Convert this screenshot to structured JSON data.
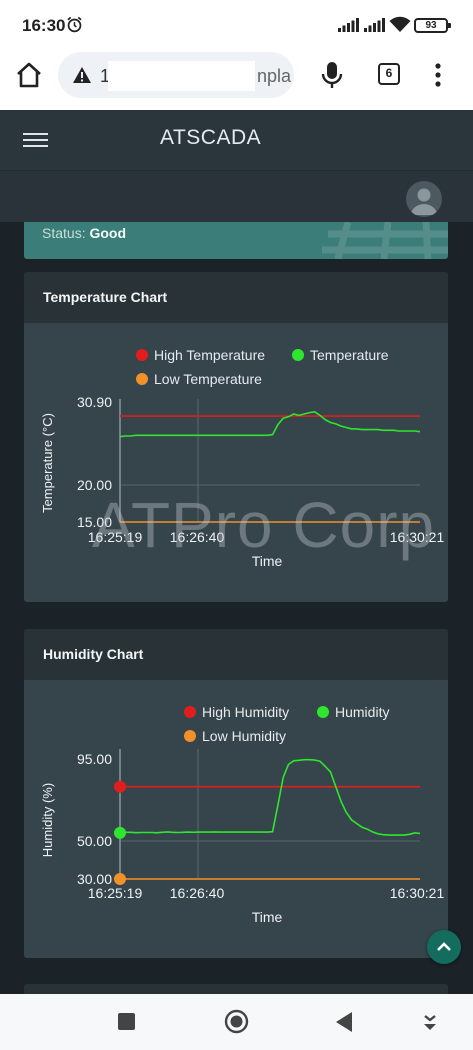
{
  "status_bar": {
    "time": "16:30",
    "battery": "93"
  },
  "browser": {
    "url_start": "1",
    "url_end": "npla",
    "tab_count": "6"
  },
  "app": {
    "title": "ATSCADA"
  },
  "status_card": {
    "label": "Status:",
    "value": "Good"
  },
  "watermark": "ATPro Corp",
  "charts": [
    {
      "header": "Temperature Chart",
      "chart_data": {
        "type": "line",
        "xlabel": "Time",
        "ylabel": "Temperature (°C)",
        "ylim": [
          15.0,
          30.9
        ],
        "y_ticks": [
          "30.90",
          "20.00",
          "15.00"
        ],
        "x_ticks": [
          "16:25:19",
          "16:26:40",
          "16:30:21"
        ],
        "legend_placement": "top",
        "colors": {
          "high": "#e11d1d",
          "value": "#2ee62e",
          "low": "#f2912a"
        },
        "series": [
          {
            "name": "High Temperature",
            "key": "high",
            "values": [
              29.9,
              29.9
            ]
          },
          {
            "name": "Temperature",
            "key": "value",
            "values": [
              27.0,
              27.1,
              27.1,
              27.2,
              27.2,
              27.2,
              27.2,
              27.2,
              27.2,
              27.2,
              27.2,
              27.2,
              27.2,
              27.2,
              27.2,
              27.2,
              27.2,
              27.2,
              27.2,
              27.2,
              27.2,
              27.2,
              27.2,
              27.2,
              27.2,
              27.2,
              27.2,
              27.2,
              27.2,
              27.3,
              28.7,
              29.6,
              29.8,
              30.2,
              30.0,
              30.2,
              30.4,
              30.5,
              30.0,
              29.4,
              29.0,
              28.8,
              28.5,
              28.3,
              28.1,
              28.1,
              28.0,
              28.0,
              28.0,
              28.0,
              27.9,
              27.9,
              27.9,
              27.8,
              27.8,
              27.8,
              27.8,
              27.7
            ]
          },
          {
            "name": "Low Temperature",
            "key": "low",
            "values": [
              15.0,
              15.0
            ]
          }
        ]
      }
    },
    {
      "header": "Humidity Chart",
      "chart_data": {
        "type": "line",
        "xlabel": "Time",
        "ylabel": "Humidity (%)",
        "ylim": [
          30.0,
          95.0
        ],
        "y_ticks": [
          "95.00",
          "50.00",
          "30.00"
        ],
        "x_ticks": [
          "16:25:19",
          "16:26:40",
          "16:30:21"
        ],
        "legend_placement": "top",
        "colors": {
          "high": "#e11d1d",
          "value": "#2ee62e",
          "low": "#f2912a"
        },
        "series": [
          {
            "name": "High Humidity",
            "key": "high",
            "values": [
              80.0,
              80.0
            ]
          },
          {
            "name": "Humidity",
            "key": "value",
            "values": [
              55.0,
              55.3,
              55.3,
              55.1,
              55.2,
              55.2,
              55.2,
              55.0,
              55.3,
              55.5,
              55.3,
              55.2,
              55.3,
              55.4,
              55.3,
              55.4,
              55.4,
              55.4,
              55.5,
              55.4,
              55.4,
              55.4,
              55.4,
              55.4,
              55.4,
              55.4,
              55.4,
              55.4,
              55.4,
              55.6,
              70.0,
              85.0,
              92.0,
              94.0,
              94.3,
              94.6,
              94.6,
              94.4,
              93.8,
              91.0,
              88.0,
              80.0,
              72.0,
              66.0,
              62.0,
              60.0,
              58.0,
              57.0,
              55.5,
              54.5,
              54.0,
              53.8,
              53.8,
              53.8,
              53.8,
              54.2,
              55.0,
              54.7
            ]
          },
          {
            "name": "Low Humidity",
            "key": "low",
            "values": [
              30.0,
              30.0
            ]
          }
        ]
      }
    }
  ]
}
